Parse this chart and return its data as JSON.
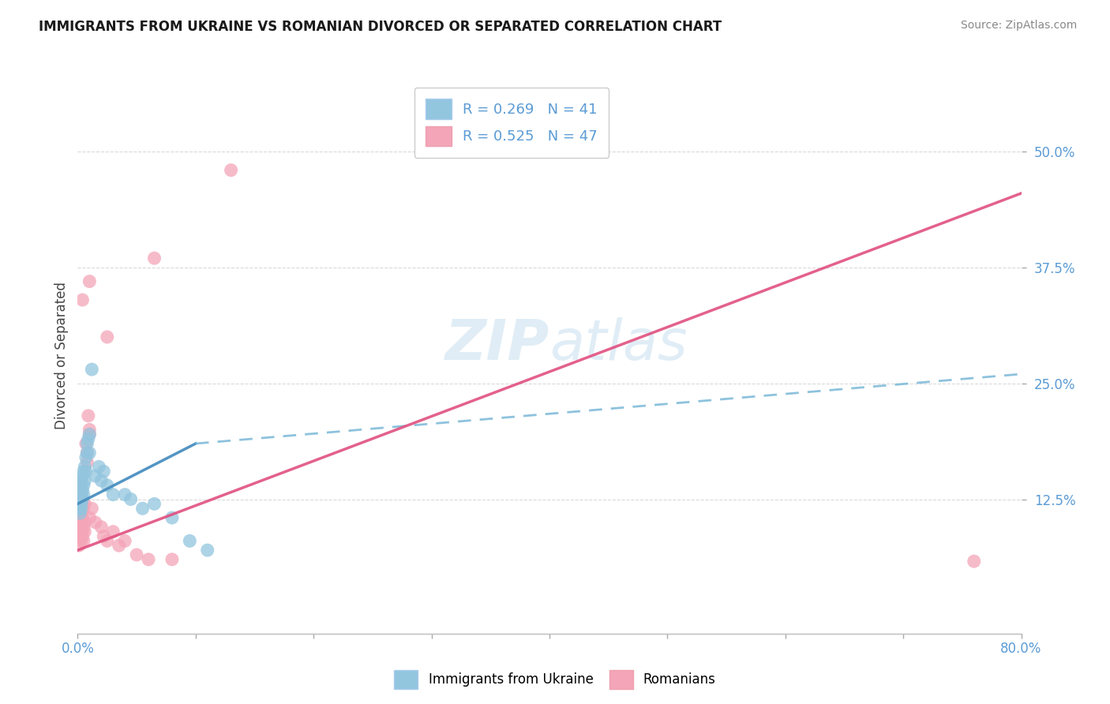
{
  "title": "IMMIGRANTS FROM UKRAINE VS ROMANIAN DIVORCED OR SEPARATED CORRELATION CHART",
  "source": "Source: ZipAtlas.com",
  "ylabel": "Divorced or Separated",
  "xlim": [
    0.0,
    0.8
  ],
  "ylim": [
    -0.02,
    0.58
  ],
  "ytick_labels": [
    "12.5%",
    "25.0%",
    "37.5%",
    "50.0%"
  ],
  "ytick_values": [
    0.125,
    0.25,
    0.375,
    0.5
  ],
  "blue_color": "#92c5de",
  "pink_color": "#f4a5b8",
  "grid_color": "#d0d0d0",
  "background_color": "#ffffff",
  "ukraine_points": [
    [
      0.001,
      0.13
    ],
    [
      0.001,
      0.12
    ],
    [
      0.001,
      0.115
    ],
    [
      0.001,
      0.125
    ],
    [
      0.002,
      0.135
    ],
    [
      0.002,
      0.11
    ],
    [
      0.002,
      0.14
    ],
    [
      0.002,
      0.125
    ],
    [
      0.003,
      0.13
    ],
    [
      0.003,
      0.12
    ],
    [
      0.003,
      0.145
    ],
    [
      0.003,
      0.115
    ],
    [
      0.004,
      0.135
    ],
    [
      0.004,
      0.125
    ],
    [
      0.004,
      0.15
    ],
    [
      0.005,
      0.14
    ],
    [
      0.005,
      0.13
    ],
    [
      0.005,
      0.155
    ],
    [
      0.006,
      0.145
    ],
    [
      0.006,
      0.16
    ],
    [
      0.007,
      0.17
    ],
    [
      0.007,
      0.155
    ],
    [
      0.008,
      0.175
    ],
    [
      0.008,
      0.185
    ],
    [
      0.009,
      0.19
    ],
    [
      0.01,
      0.175
    ],
    [
      0.01,
      0.195
    ],
    [
      0.012,
      0.265
    ],
    [
      0.015,
      0.15
    ],
    [
      0.018,
      0.16
    ],
    [
      0.02,
      0.145
    ],
    [
      0.022,
      0.155
    ],
    [
      0.025,
      0.14
    ],
    [
      0.03,
      0.13
    ],
    [
      0.04,
      0.13
    ],
    [
      0.045,
      0.125
    ],
    [
      0.055,
      0.115
    ],
    [
      0.065,
      0.12
    ],
    [
      0.08,
      0.105
    ],
    [
      0.095,
      0.08
    ],
    [
      0.11,
      0.07
    ]
  ],
  "romanian_points": [
    [
      0.001,
      0.13
    ],
    [
      0.001,
      0.11
    ],
    [
      0.001,
      0.095
    ],
    [
      0.001,
      0.085
    ],
    [
      0.001,
      0.12
    ],
    [
      0.001,
      0.075
    ],
    [
      0.002,
      0.14
    ],
    [
      0.002,
      0.09
    ],
    [
      0.002,
      0.1
    ],
    [
      0.002,
      0.115
    ],
    [
      0.003,
      0.11
    ],
    [
      0.003,
      0.12
    ],
    [
      0.003,
      0.08
    ],
    [
      0.003,
      0.095
    ],
    [
      0.004,
      0.125
    ],
    [
      0.004,
      0.105
    ],
    [
      0.004,
      0.09
    ],
    [
      0.004,
      0.085
    ],
    [
      0.005,
      0.115
    ],
    [
      0.005,
      0.095
    ],
    [
      0.005,
      0.08
    ],
    [
      0.006,
      0.12
    ],
    [
      0.006,
      0.1
    ],
    [
      0.006,
      0.09
    ],
    [
      0.007,
      0.185
    ],
    [
      0.008,
      0.175
    ],
    [
      0.008,
      0.165
    ],
    [
      0.009,
      0.215
    ],
    [
      0.01,
      0.2
    ],
    [
      0.01,
      0.195
    ],
    [
      0.01,
      0.105
    ],
    [
      0.012,
      0.115
    ],
    [
      0.015,
      0.1
    ],
    [
      0.02,
      0.095
    ],
    [
      0.022,
      0.085
    ],
    [
      0.025,
      0.08
    ],
    [
      0.03,
      0.09
    ],
    [
      0.035,
      0.075
    ],
    [
      0.04,
      0.08
    ],
    [
      0.05,
      0.065
    ],
    [
      0.06,
      0.06
    ],
    [
      0.004,
      0.34
    ],
    [
      0.01,
      0.36
    ],
    [
      0.025,
      0.3
    ],
    [
      0.065,
      0.385
    ],
    [
      0.13,
      0.48
    ],
    [
      0.08,
      0.06
    ],
    [
      0.76,
      0.058
    ]
  ],
  "blue_trendline_solid": [
    [
      0.0,
      0.12
    ],
    [
      0.1,
      0.185
    ]
  ],
  "blue_trendline_dashed": [
    [
      0.1,
      0.185
    ],
    [
      0.8,
      0.26
    ]
  ],
  "pink_trendline": [
    [
      0.0,
      0.07
    ],
    [
      0.8,
      0.455
    ]
  ]
}
